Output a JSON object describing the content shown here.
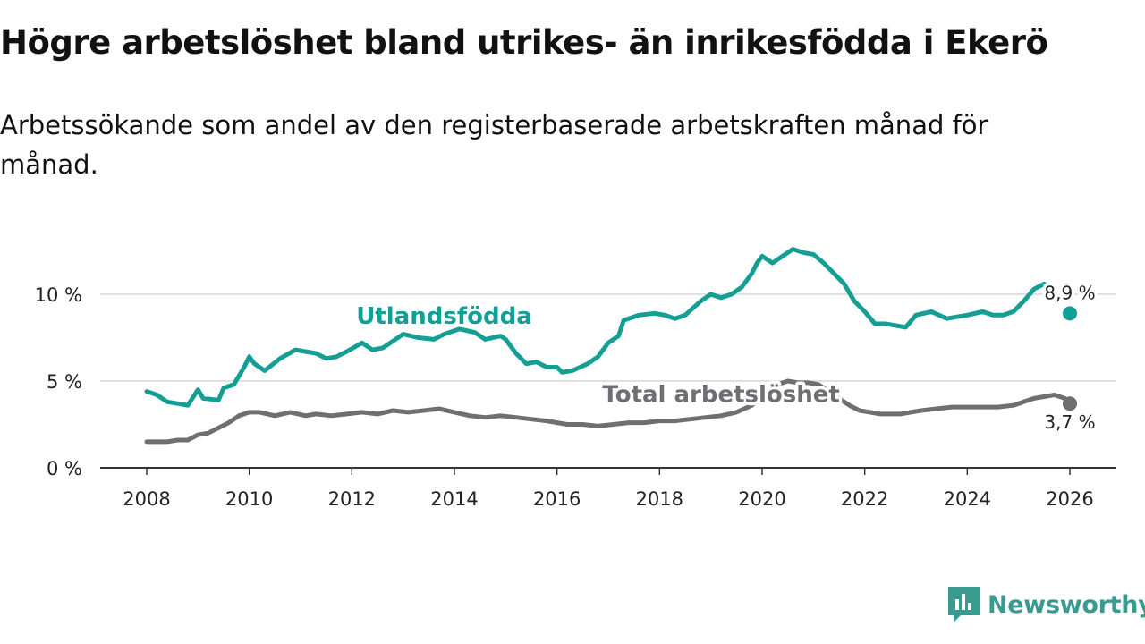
{
  "header": {
    "title": "Högre arbetslöshet bland utrikes- än inrikesfödda i Ekerö",
    "subtitle": "Arbetssökande som andel av den registerbaserade arbetskraften månad för månad."
  },
  "brand": {
    "name": "Newsworthy",
    "icon": "newsworthy-logo-icon",
    "color": "#3a9a8f"
  },
  "chart_data": {
    "type": "line",
    "title": "Högre arbetslöshet bland utrikes- än inrikesfödda i Ekerö",
    "xlabel": "",
    "ylabel": "",
    "xlim": [
      2007.5,
      2026.9
    ],
    "ylim": [
      0,
      13.5
    ],
    "x_ticks": [
      2008,
      2010,
      2012,
      2014,
      2016,
      2018,
      2020,
      2022,
      2024,
      2026
    ],
    "x_tick_labels": [
      "2008",
      "2010",
      "2012",
      "2014",
      "2016",
      "2018",
      "2020",
      "2022",
      "2024",
      "2026"
    ],
    "y_ticks": [
      0,
      5,
      10
    ],
    "y_tick_labels": [
      "0 %",
      "5 %",
      "10 %"
    ],
    "grid": true,
    "series": [
      {
        "name": "Utlandsfödda",
        "color": "#149e94",
        "end_x": 2026.0,
        "end_value": 8.9,
        "end_label": "8,9 %",
        "label_at": [
          2013.8,
          8.3
        ],
        "x": [
          2008.0,
          2008.2,
          2008.4,
          2008.6,
          2008.8,
          2009.0,
          2009.1,
          2009.4,
          2009.5,
          2009.7,
          2009.9,
          2010.0,
          2010.1,
          2010.3,
          2010.6,
          2010.9,
          2011.3,
          2011.5,
          2011.7,
          2011.9,
          2012.2,
          2012.4,
          2012.6,
          2012.8,
          2013.0,
          2013.3,
          2013.6,
          2013.8,
          2014.1,
          2014.4,
          2014.6,
          2014.9,
          2015.0,
          2015.2,
          2015.4,
          2015.6,
          2015.8,
          2016.0,
          2016.1,
          2016.3,
          2016.6,
          2016.8,
          2017.0,
          2017.2,
          2017.3,
          2017.6,
          2017.9,
          2018.1,
          2018.3,
          2018.5,
          2018.8,
          2019.0,
          2019.2,
          2019.4,
          2019.6,
          2019.8,
          2019.9,
          2020.0,
          2020.2,
          2020.4,
          2020.6,
          2020.8,
          2021.0,
          2021.2,
          2021.4,
          2021.6,
          2021.8,
          2022.0,
          2022.2,
          2022.4,
          2022.6,
          2022.8,
          2023.0,
          2023.3,
          2023.6,
          2023.8,
          2024.0,
          2024.3,
          2024.5,
          2024.7,
          2024.9,
          2025.1,
          2025.3,
          2025.5
        ],
        "values": [
          4.4,
          4.2,
          3.8,
          3.7,
          3.6,
          4.5,
          4.0,
          3.9,
          4.6,
          4.8,
          5.8,
          6.4,
          6.0,
          5.6,
          6.3,
          6.8,
          6.6,
          6.3,
          6.4,
          6.7,
          7.2,
          6.8,
          6.9,
          7.3,
          7.7,
          7.5,
          7.4,
          7.7,
          8.0,
          7.8,
          7.4,
          7.6,
          7.4,
          6.6,
          6.0,
          6.1,
          5.8,
          5.8,
          5.5,
          5.6,
          6.0,
          6.4,
          7.2,
          7.6,
          8.5,
          8.8,
          8.9,
          8.8,
          8.6,
          8.8,
          9.6,
          10.0,
          9.8,
          10.0,
          10.4,
          11.2,
          11.8,
          12.2,
          11.8,
          12.2,
          12.6,
          12.4,
          12.3,
          11.8,
          11.2,
          10.6,
          9.6,
          9.0,
          8.3,
          8.3,
          8.2,
          8.1,
          8.8,
          9.0,
          8.6,
          8.7,
          8.8,
          9.0,
          8.8,
          8.8,
          9.0,
          9.6,
          10.3,
          10.6
        ]
      },
      {
        "name": "Total arbetslöshet",
        "color": "#6e6e73",
        "end_x": 2026.0,
        "end_value": 3.7,
        "end_label": "3,7 %",
        "label_at": [
          2019.2,
          3.8
        ],
        "x": [
          2008.0,
          2008.2,
          2008.4,
          2008.6,
          2008.8,
          2009.0,
          2009.2,
          2009.4,
          2009.6,
          2009.8,
          2010.0,
          2010.2,
          2010.5,
          2010.8,
          2011.1,
          2011.3,
          2011.6,
          2011.9,
          2012.2,
          2012.5,
          2012.8,
          2013.1,
          2013.4,
          2013.7,
          2014.0,
          2014.3,
          2014.6,
          2014.9,
          2015.2,
          2015.5,
          2015.8,
          2016.0,
          2016.2,
          2016.5,
          2016.8,
          2017.1,
          2017.4,
          2017.7,
          2018.0,
          2018.3,
          2018.6,
          2018.9,
          2019.2,
          2019.5,
          2019.8,
          2020.0,
          2020.3,
          2020.5,
          2020.7,
          2020.9,
          2021.1,
          2021.3,
          2021.5,
          2021.7,
          2021.9,
          2022.1,
          2022.3,
          2022.5,
          2022.7,
          2022.9,
          2023.1,
          2023.4,
          2023.7,
          2024.0,
          2024.3,
          2024.6,
          2024.9,
          2025.1,
          2025.3,
          2025.5,
          2025.7,
          2025.9,
          2026.0
        ],
        "values": [
          1.5,
          1.5,
          1.5,
          1.6,
          1.6,
          1.9,
          2.0,
          2.3,
          2.6,
          3.0,
          3.2,
          3.2,
          3.0,
          3.2,
          3.0,
          3.1,
          3.0,
          3.1,
          3.2,
          3.1,
          3.3,
          3.2,
          3.3,
          3.4,
          3.2,
          3.0,
          2.9,
          3.0,
          2.9,
          2.8,
          2.7,
          2.6,
          2.5,
          2.5,
          2.4,
          2.5,
          2.6,
          2.6,
          2.7,
          2.7,
          2.8,
          2.9,
          3.0,
          3.2,
          3.6,
          4.2,
          4.8,
          5.0,
          4.9,
          4.9,
          4.8,
          4.4,
          4.0,
          3.6,
          3.3,
          3.2,
          3.1,
          3.1,
          3.1,
          3.2,
          3.3,
          3.4,
          3.5,
          3.5,
          3.5,
          3.5,
          3.6,
          3.8,
          4.0,
          4.1,
          4.2,
          4.0,
          3.7
        ]
      }
    ]
  }
}
